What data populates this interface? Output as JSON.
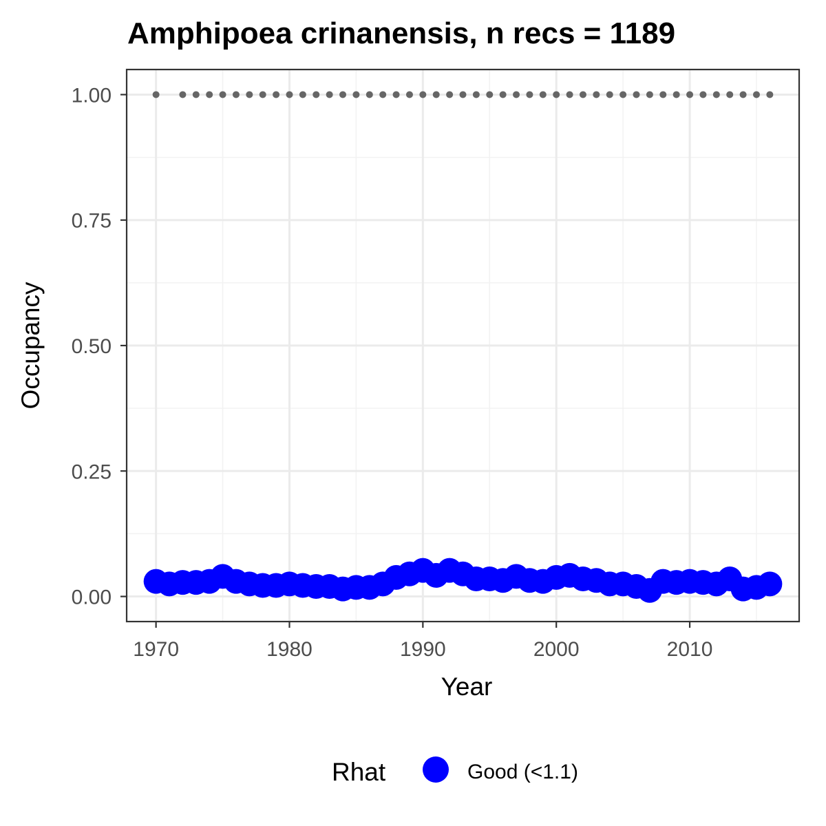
{
  "chart_data": {
    "type": "scatter",
    "title": "Amphipoea crinanensis, n recs = 1189",
    "xlabel": "Year",
    "ylabel": "Occupancy",
    "xlim": [
      1967.8,
      2018.2
    ],
    "ylim": [
      -0.05,
      1.05
    ],
    "x_ticks": [
      1970,
      1980,
      1990,
      2000,
      2010
    ],
    "x_tick_labels": [
      "1970",
      "1980",
      "1990",
      "2000",
      "2010"
    ],
    "y_ticks": [
      0,
      0.25,
      0.5,
      0.75,
      1.0
    ],
    "y_tick_labels": [
      "0.00",
      "0.25",
      "0.50",
      "0.75",
      "1.00"
    ],
    "grid": true,
    "legend": {
      "title": "Rhat",
      "position": "bottom",
      "items": [
        {
          "label": "Good (<1.1)",
          "color": "#0000ff"
        }
      ]
    },
    "colors": {
      "occupancy": "#0000ff",
      "reference": "#666666"
    },
    "series": [
      {
        "name": "Good (<1.1)",
        "marker": "large-circle",
        "x": [
          1970,
          1971,
          1972,
          1973,
          1974,
          1975,
          1976,
          1977,
          1978,
          1979,
          1980,
          1981,
          1982,
          1983,
          1984,
          1985,
          1986,
          1987,
          1988,
          1989,
          1990,
          1991,
          1992,
          1993,
          1994,
          1995,
          1996,
          1997,
          1998,
          1999,
          2000,
          2001,
          2002,
          2003,
          2004,
          2005,
          2006,
          2007,
          2008,
          2009,
          2010,
          2011,
          2012,
          2013,
          2014,
          2015,
          2016
        ],
        "y": [
          0.03,
          0.025,
          0.028,
          0.028,
          0.03,
          0.04,
          0.03,
          0.025,
          0.022,
          0.022,
          0.025,
          0.022,
          0.02,
          0.02,
          0.015,
          0.018,
          0.018,
          0.025,
          0.038,
          0.045,
          0.052,
          0.042,
          0.052,
          0.045,
          0.035,
          0.035,
          0.032,
          0.04,
          0.032,
          0.03,
          0.038,
          0.042,
          0.035,
          0.032,
          0.025,
          0.025,
          0.02,
          0.012,
          0.03,
          0.028,
          0.03,
          0.028,
          0.025,
          0.035,
          0.015,
          0.018,
          0.025
        ]
      },
      {
        "marker": "small-dot",
        "x": [
          1970,
          1972,
          1973,
          1974,
          1975,
          1976,
          1977,
          1978,
          1979,
          1980,
          1981,
          1982,
          1983,
          1984,
          1985,
          1986,
          1987,
          1988,
          1989,
          1990,
          1991,
          1992,
          1993,
          1994,
          1995,
          1996,
          1997,
          1998,
          1999,
          2000,
          2001,
          2002,
          2003,
          2004,
          2005,
          2006,
          2007,
          2008,
          2009,
          2010,
          2011,
          2012,
          2013,
          2014,
          2015,
          2016
        ],
        "y": [
          1,
          1,
          1,
          1,
          1,
          1,
          1,
          1,
          1,
          1,
          1,
          1,
          1,
          1,
          1,
          1,
          1,
          1,
          1,
          1,
          1,
          1,
          1,
          1,
          1,
          1,
          1,
          1,
          1,
          1,
          1,
          1,
          1,
          1,
          1,
          1,
          1,
          1,
          1,
          1,
          1,
          1,
          1,
          1,
          1,
          1
        ]
      }
    ]
  }
}
